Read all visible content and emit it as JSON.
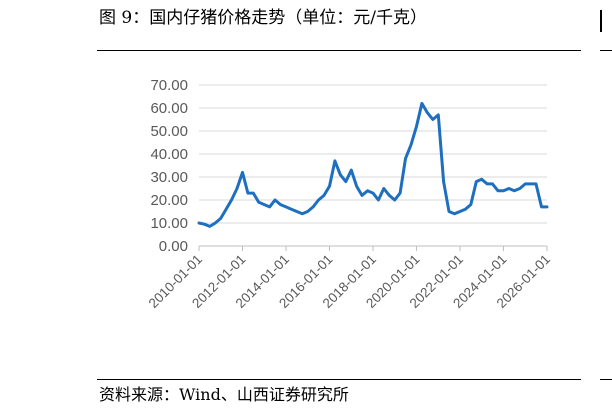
{
  "header": {
    "title": "图 9：国内仔猪价格走势（单位：元/千克）"
  },
  "footer": {
    "source": "资料来源：Wind、山西证券研究所"
  },
  "chart_data": {
    "type": "line",
    "ylim": [
      0,
      70
    ],
    "yticks": [
      "0.00",
      "10.00",
      "20.00",
      "30.00",
      "40.00",
      "50.00",
      "60.00",
      "70.00"
    ],
    "xlim": [
      "2010-01-01",
      "2026-01-01"
    ],
    "xticks": [
      "2010-01-01",
      "2012-01-01",
      "2014-01-01",
      "2016-01-01",
      "2018-01-01",
      "2020-01-01",
      "2022-01-01",
      "2024-01-01",
      "2026-01-01"
    ],
    "grid": true,
    "legend": "none",
    "colors": {
      "line": "#1f6fc0",
      "grid": "#d9d9d9",
      "axis": "#bfbfbf"
    },
    "series": [
      {
        "x": [
          "2010-01-01",
          "2010-04-01",
          "2010-07-01",
          "2010-10-01",
          "2011-01-01",
          "2011-04-01",
          "2011-07-01",
          "2011-10-01",
          "2012-01-01",
          "2012-04-01",
          "2012-07-01",
          "2012-10-01",
          "2013-01-01",
          "2013-04-01",
          "2013-07-01",
          "2013-10-01",
          "2014-01-01",
          "2014-04-01",
          "2014-07-01",
          "2014-10-01",
          "2015-01-01",
          "2015-04-01",
          "2015-07-01",
          "2015-10-01",
          "2016-01-01",
          "2016-04-01",
          "2016-07-01",
          "2016-10-01",
          "2017-01-01",
          "2017-04-01",
          "2017-07-01",
          "2017-10-01",
          "2018-01-01",
          "2018-04-01",
          "2018-07-01",
          "2018-10-01",
          "2019-01-01",
          "2019-04-01",
          "2019-07-01",
          "2019-10-01",
          "2020-01-01",
          "2020-04-01",
          "2020-07-01",
          "2020-10-01",
          "2021-01-01",
          "2021-04-01",
          "2021-07-01",
          "2021-10-01",
          "2022-01-01",
          "2022-04-01",
          "2022-07-01",
          "2022-10-01",
          "2023-01-01",
          "2023-04-01",
          "2023-07-01",
          "2023-10-01",
          "2024-01-01",
          "2024-04-01",
          "2024-07-01",
          "2024-10-01",
          "2025-01-01",
          "2025-04-01",
          "2025-07-01",
          "2025-10-01",
          "2026-01-01"
        ],
        "values": [
          10,
          9.5,
          8.5,
          10,
          12,
          16,
          20,
          25,
          32,
          23,
          23,
          19,
          18,
          17,
          20,
          18,
          17,
          16,
          15,
          14,
          15,
          17,
          20,
          22,
          26,
          37,
          31,
          28,
          33,
          26,
          22,
          24,
          23,
          20,
          25,
          22,
          20,
          23,
          38,
          44,
          52,
          62,
          58,
          55,
          57,
          28,
          15,
          14,
          15,
          16,
          18,
          28,
          29,
          27,
          27,
          24,
          24,
          25,
          24,
          25,
          27,
          27,
          27,
          17,
          17
        ]
      }
    ]
  }
}
